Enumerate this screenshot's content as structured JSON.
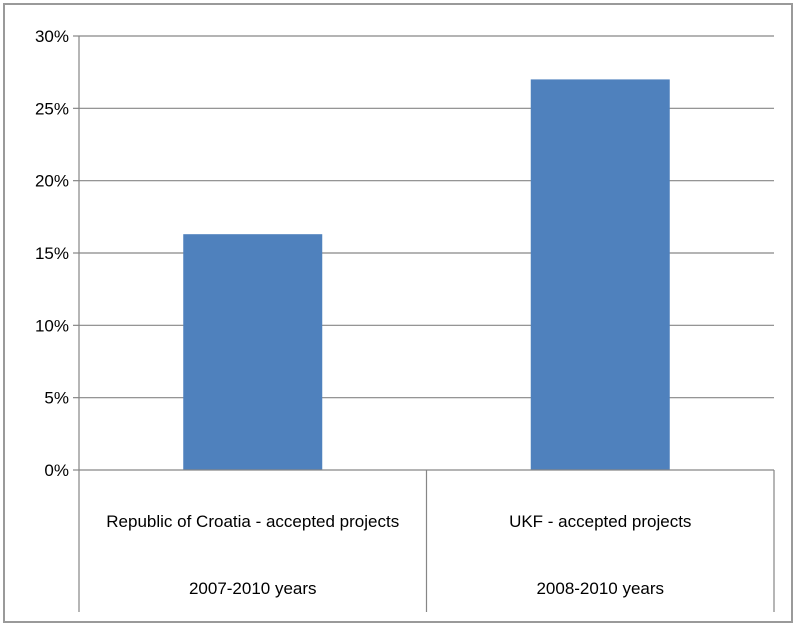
{
  "chart_data": {
    "type": "bar",
    "categories": [
      [
        "Republic of Croatia - accepted projects",
        "2007-2010 years"
      ],
      [
        "UKF - accepted projects",
        "2008-2010 years"
      ]
    ],
    "values": [
      16.3,
      27.0
    ],
    "ylim": [
      0,
      30
    ],
    "yticks": [
      0,
      5,
      10,
      15,
      20,
      25,
      30
    ],
    "ytick_format": "percent",
    "title": "",
    "xlabel": "",
    "ylabel": "",
    "legend": "none",
    "grid": true,
    "bar_color": "#4f81bd",
    "grid_color": "#868686"
  }
}
